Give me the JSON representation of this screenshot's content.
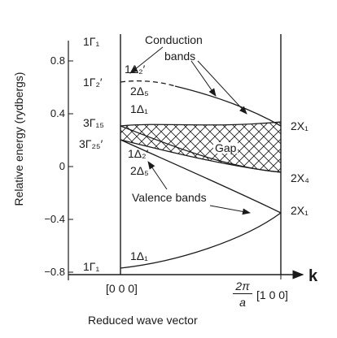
{
  "yaxis": {
    "label": "Relative energy (rydbergs)",
    "ticks": [
      "0.8",
      "0.4",
      "0",
      "−0.4",
      "−0.8"
    ]
  },
  "xaxis": {
    "label": "Reduced wave vector",
    "left_point": "[0 0 0]",
    "right_point": "[1 0 0]",
    "right_frac_num": "2π",
    "right_frac_den": "a",
    "k_symbol": "k"
  },
  "left_labels": {
    "g1_top": "1Γ₁",
    "g2p": "1Γ₂′",
    "g15": "3Γ₁₅",
    "g25p": "3Γ₂₅′",
    "g1_bottom": "1Γ₁"
  },
  "band_labels": {
    "d2p_upper": "1Δ₂′",
    "d5_upper": "2Δ₅",
    "d1_upper": "1Δ₁",
    "d2p_lower": "1Δ₂′",
    "d5_lower": "2Δ₅",
    "d1_lower": "1Δ₁"
  },
  "right_labels": {
    "x1_upper": "2X₁",
    "x4": "2X₄",
    "x1_lower": "2X₁"
  },
  "annotations": {
    "conduction_line1": "Conduction",
    "conduction_line2": "bands",
    "gap": "Gap",
    "valence": "Valence bands"
  }
}
